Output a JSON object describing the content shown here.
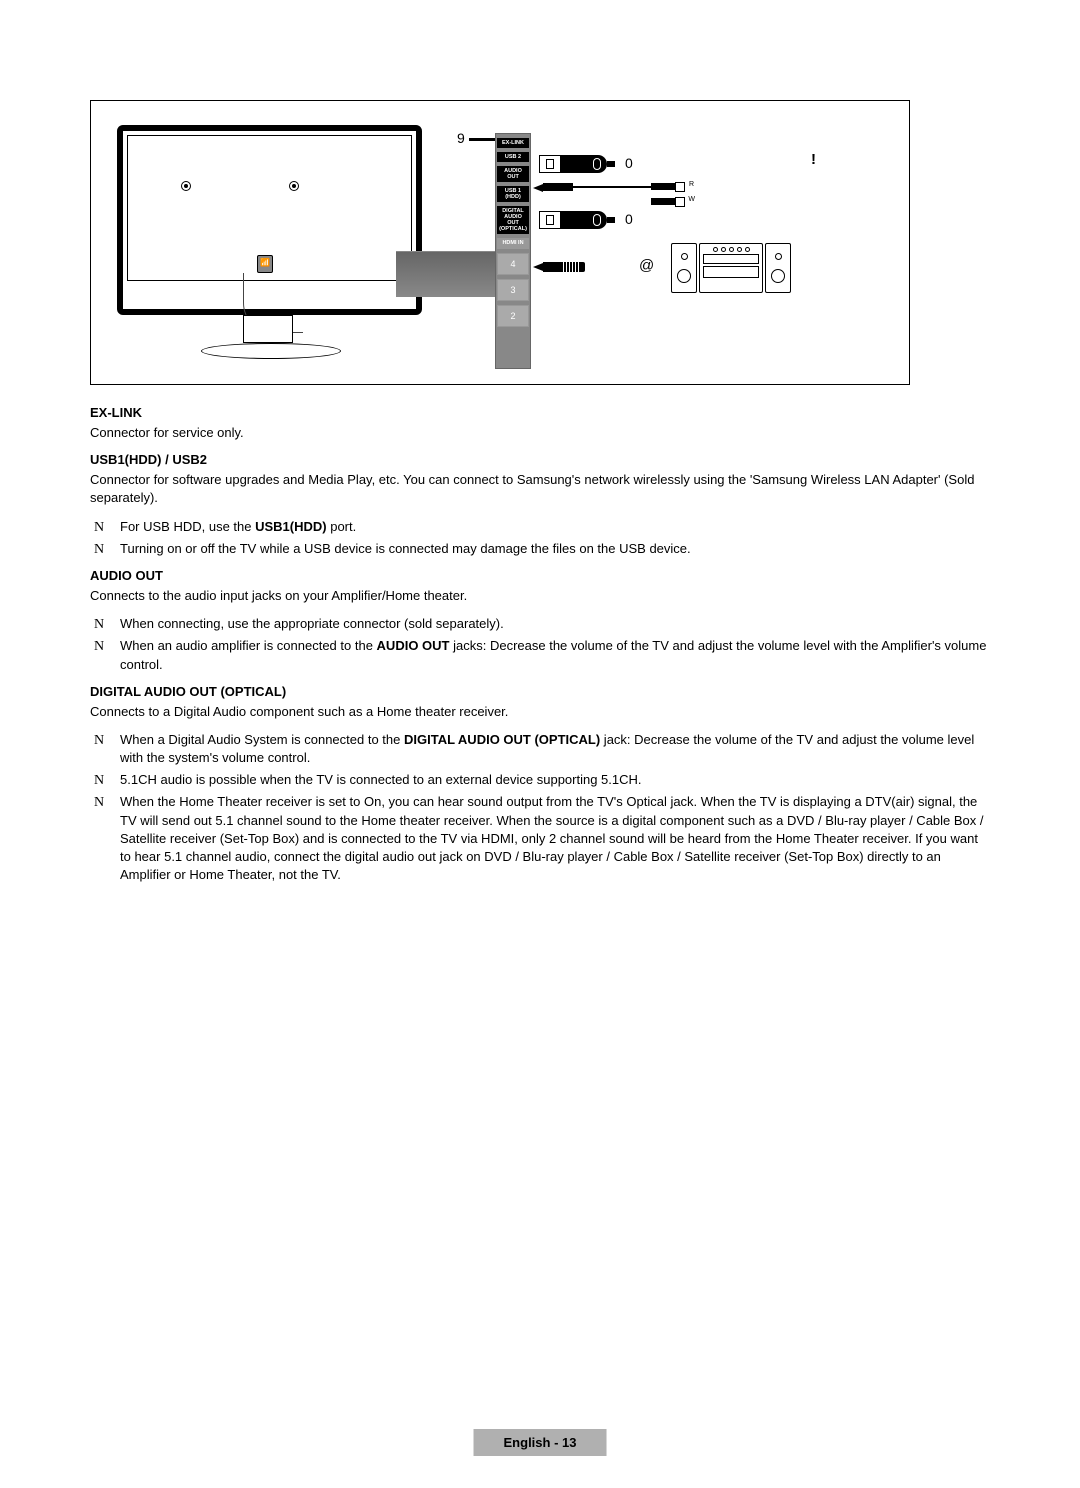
{
  "diagram": {
    "callout9": "9",
    "callout0a": "0",
    "callout0b": "0",
    "calloutExcl": "!",
    "calloutAt": "@",
    "ports": {
      "exlink": "EX-LINK",
      "usb2": "USB 2",
      "audioout": "AUDIO OUT",
      "usb1hdd": "USB 1 (HDD)",
      "digitalAudio": "DIGITAL\nAUDIO OUT\n(OPTICAL)",
      "hdmiIn": "HDMI IN",
      "hdmi4": "4",
      "hdmi3": "3",
      "hdmi2": "2"
    }
  },
  "sections": {
    "exlink": {
      "title": "EX-LINK",
      "text": "Connector for service only."
    },
    "usb": {
      "title": "USB1(HDD) / USB2",
      "text": "Connector for software upgrades and Media Play, etc. You can connect to Samsung's network wirelessly using the 'Samsung Wireless LAN Adapter' (Sold separately).",
      "note1_pre": "For USB HDD, use the ",
      "note1_bold": "USB1(HDD)",
      "note1_post": " port.",
      "note2": "Turning on or off the TV while a USB device is connected may damage the files on the USB device."
    },
    "audioout": {
      "title": "AUDIO OUT",
      "text": "Connects to the audio input jacks on your Amplifier/Home theater.",
      "note1": "When connecting, use the appropriate connector (sold separately).",
      "note2_pre": "When an audio amplifier is connected to the ",
      "note2_bold": "AUDIO OUT",
      "note2_post": " jacks: Decrease the volume of the TV and adjust the volume level with the Amplifier's volume control."
    },
    "digital": {
      "title": "DIGITAL AUDIO OUT (OPTICAL)",
      "text": "Connects to a Digital Audio component such as a Home theater receiver.",
      "note1_pre": "When a Digital Audio System is connected to the ",
      "note1_bold": "DIGITAL AUDIO OUT (OPTICAL)",
      "note1_post": " jack: Decrease the volume of the TV and adjust the volume level with the system's volume control.",
      "note2": "5.1CH audio is possible when the TV is connected to an external device supporting 5.1CH.",
      "note3": "When the Home Theater receiver is set to On, you can hear sound output from the TV's Optical jack. When the TV is displaying a DTV(air) signal, the TV will send out 5.1 channel sound to the Home theater receiver. When the source is a digital component such as a DVD / Blu-ray player / Cable Box / Satellite receiver (Set-Top Box) and is connected to the TV via HDMI, only 2 channel sound will be heard from the Home Theater receiver. If you want to hear 5.1 channel audio, connect the digital audio out jack on DVD / Blu-ray player / Cable Box / Satellite receiver (Set-Top Box) directly to an Amplifier or Home Theater, not the TV."
    }
  },
  "footer": "English - 13"
}
